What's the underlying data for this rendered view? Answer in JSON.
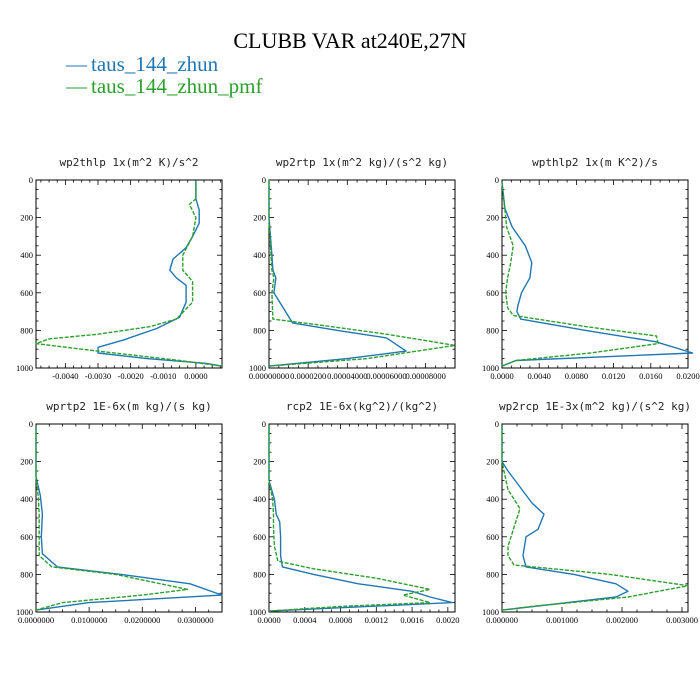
{
  "figure": {
    "title": "CLUBB VAR at240E,27N",
    "legend": [
      {
        "label": "taus_144_zhun",
        "color": "#1f77b4",
        "style": "solid",
        "symbol": "—"
      },
      {
        "label": "taus_144_zhun_pmf",
        "color": "#2ca02c",
        "style": "dashed",
        "symbol": "—"
      }
    ]
  },
  "chart_data": [
    {
      "type": "line",
      "title": "wp2thlp  1x(m^2 K)/s^2",
      "xlim": [
        -0.0049,
        0.0008
      ],
      "ylim": [
        1000,
        0
      ],
      "xticks": [
        -0.004,
        -0.003,
        -0.002,
        -0.001,
        0.0
      ],
      "xtick_labels": [
        "-0.0040",
        "-0.0030",
        "-0.0020",
        "-0.0010",
        "0.0000"
      ],
      "yticks": [
        0,
        200,
        400,
        600,
        800,
        1000
      ],
      "series": [
        {
          "name": "taus_144_zhun",
          "x": [
            0.0,
            0.0,
            0.0001,
            0.0001,
            -0.0001,
            -0.0003,
            -0.0007,
            -0.0008,
            -0.0006,
            -0.0003,
            -0.0003,
            -0.0005,
            -0.0012,
            -0.0022,
            -0.003,
            -0.003,
            -0.0015,
            0.0003,
            0.0008
          ],
          "y": [
            10,
            100,
            160,
            230,
            300,
            360,
            420,
            480,
            520,
            560,
            650,
            730,
            790,
            850,
            890,
            920,
            950,
            975,
            990
          ]
        },
        {
          "name": "taus_144_zhun_pmf",
          "x": [
            0.0,
            0.0,
            -0.0002,
            0.0,
            -0.0001,
            -0.0004,
            -0.0004,
            -0.0001,
            -0.0001,
            -0.0006,
            -0.0014,
            -0.003,
            -0.0045,
            -0.0049,
            -0.0035,
            -0.0005,
            0.0008
          ],
          "y": [
            10,
            100,
            130,
            200,
            300,
            400,
            480,
            540,
            650,
            740,
            780,
            820,
            845,
            870,
            900,
            960,
            990
          ]
        }
      ]
    },
    {
      "type": "line",
      "title": "wp2rtp  1x(m^2 kg)/(s^2 kg)",
      "xlim": [
        0.0,
        9.5e-05
      ],
      "ylim": [
        1000,
        0
      ],
      "xticks": [
        0.0,
        2e-05,
        4e-05,
        6e-05,
        8e-05
      ],
      "xtick_labels": [
        "0.00000000",
        "0.0000200",
        "0.00004000",
        "0.00006000",
        "0.00008000"
      ],
      "yticks": [
        0,
        200,
        400,
        600,
        800,
        1000
      ],
      "series": [
        {
          "name": "taus_144_zhun",
          "x": [
            0.0,
            0.0,
            1.5e-06,
            2e-06,
            3.5e-06,
            2.5e-06,
            1.2e-05,
            3.5e-05,
            6e-05,
            7e-05,
            4e-05,
            0.0
          ],
          "y": [
            0,
            200,
            400,
            480,
            520,
            600,
            760,
            800,
            840,
            910,
            950,
            990
          ]
        },
        {
          "name": "taus_144_zhun_pmf",
          "x": [
            0.0,
            0.0,
            1e-06,
            1.5e-06,
            2.5e-06,
            1.5e-06,
            2e-06,
            2.5e-05,
            6e-05,
            9.5e-05,
            5e-05,
            0.0
          ],
          "y": [
            0,
            200,
            400,
            480,
            520,
            600,
            740,
            770,
            820,
            880,
            950,
            990
          ]
        }
      ]
    },
    {
      "type": "line",
      "title": "wpthlp2  1x(m K^2)/s",
      "xlim": [
        0.0,
        0.02
      ],
      "ylim": [
        1000,
        0
      ],
      "xticks": [
        0.0,
        0.004,
        0.008,
        0.012,
        0.016,
        0.02
      ],
      "xtick_labels": [
        "0.0000",
        "0.0040",
        "0.0080",
        "0.0120",
        "0.0160",
        "0.0200"
      ],
      "yticks": [
        0,
        200,
        400,
        600,
        800,
        1000
      ],
      "series": [
        {
          "name": "taus_144_zhun",
          "x": [
            0.0,
            0.0003,
            0.0011,
            0.0025,
            0.0032,
            0.003,
            0.0021,
            0.0017,
            0.0016,
            0.002,
            0.009,
            0.0165,
            0.0205,
            0.0015,
            0.0
          ],
          "y": [
            10,
            150,
            250,
            350,
            440,
            520,
            600,
            670,
            700,
            740,
            800,
            860,
            920,
            960,
            990
          ]
        },
        {
          "name": "taus_144_zhun_pmf",
          "x": [
            0.0,
            0.0003,
            0.0005,
            0.0012,
            0.0009,
            0.0006,
            0.0004,
            0.0006,
            0.0012,
            0.009,
            0.0166,
            0.0168,
            0.0095,
            0.0015,
            0.0
          ],
          "y": [
            10,
            150,
            250,
            350,
            450,
            520,
            600,
            680,
            720,
            780,
            830,
            870,
            920,
            960,
            990
          ]
        }
      ]
    },
    {
      "type": "line",
      "title": "wprtp2  1E-6x(m kg)/(s kg)",
      "xlim": [
        0.0,
        0.035
      ],
      "ylim": [
        1000,
        0
      ],
      "xticks": [
        0.0,
        0.01,
        0.02,
        0.03
      ],
      "xtick_labels": [
        "0.0000000",
        "0.0100000",
        "0.0200000",
        "0.0300000"
      ],
      "yticks": [
        0,
        200,
        400,
        600,
        800,
        1000
      ],
      "series": [
        {
          "name": "taus_144_zhun",
          "x": [
            0.0,
            0.0,
            0.0008,
            0.0012,
            0.001,
            0.0012,
            0.004,
            0.016,
            0.029,
            0.035,
            0.01,
            0.0
          ],
          "y": [
            10,
            280,
            380,
            480,
            600,
            690,
            760,
            800,
            850,
            910,
            950,
            990
          ]
        },
        {
          "name": "taus_144_zhun_pmf",
          "x": [
            0.0,
            0.0,
            0.0004,
            0.0006,
            0.0006,
            0.0006,
            0.003,
            0.015,
            0.0285,
            0.02,
            0.005,
            0.0
          ],
          "y": [
            10,
            280,
            380,
            480,
            600,
            700,
            760,
            800,
            880,
            910,
            950,
            990
          ]
        }
      ]
    },
    {
      "type": "line",
      "title": "rcp2  1E-6x(kg^2)/(kg^2)",
      "xlim": [
        0.0,
        0.00208
      ],
      "ylim": [
        1000,
        0
      ],
      "xticks": [
        0.0,
        0.0004,
        0.0008,
        0.0012,
        0.0016,
        0.002
      ],
      "xtick_labels": [
        "0.0000",
        "0.0004",
        "0.0008",
        "0.0012",
        "0.0016",
        "0.0020"
      ],
      "yticks": [
        0,
        200,
        400,
        600,
        800,
        1000
      ],
      "series": [
        {
          "name": "taus_144_zhun",
          "x": [
            0.0,
            0.0,
            6e-05,
            8e-05,
            0.00012,
            0.00013,
            0.00013,
            0.00015,
            0.0005,
            0.001,
            0.0016,
            0.0018,
            0.00205,
            0.0
          ],
          "y": [
            10,
            300,
            400,
            480,
            520,
            600,
            700,
            760,
            800,
            850,
            890,
            920,
            950,
            995
          ]
        },
        {
          "name": "taus_144_zhun_pmf",
          "x": [
            0.0,
            0.0,
            4e-05,
            5e-05,
            5e-05,
            6e-05,
            0.0001,
            0.0005,
            0.0012,
            0.0018,
            0.0015,
            0.0018,
            0.0008,
            0.0
          ],
          "y": [
            10,
            300,
            400,
            480,
            550,
            650,
            730,
            770,
            820,
            880,
            910,
            950,
            970,
            995
          ]
        }
      ]
    },
    {
      "type": "line",
      "title": "wp2rcp  1E-3x(m^2 kg)/(s^2 kg)",
      "xlim": [
        0.0,
        0.0031
      ],
      "ylim": [
        1000,
        0
      ],
      "xticks": [
        0.0,
        0.001,
        0.002,
        0.003
      ],
      "xtick_labels": [
        "0.000000",
        "0.001000",
        "0.002000",
        "0.003000"
      ],
      "yticks": [
        0,
        200,
        400,
        600,
        800,
        1000
      ],
      "series": [
        {
          "name": "taus_144_zhun",
          "x": [
            0.0,
            0.0,
            0.0001,
            0.0005,
            0.0007,
            0.0006,
            0.0004,
            0.00035,
            0.0004,
            0.0012,
            0.0019,
            0.0021,
            0.0019,
            0.0
          ],
          "y": [
            10,
            200,
            250,
            420,
            480,
            560,
            600,
            700,
            760,
            800,
            850,
            890,
            920,
            990
          ]
        },
        {
          "name": "taus_144_zhun_pmf",
          "x": [
            0.0,
            0.0,
            0.0001,
            0.0003,
            0.0002,
            0.0001,
            0.0001,
            0.0002,
            0.0018,
            0.0031,
            0.0021,
            0.0005,
            0.0
          ],
          "y": [
            10,
            200,
            350,
            450,
            550,
            650,
            700,
            750,
            800,
            860,
            920,
            970,
            990
          ]
        }
      ]
    }
  ]
}
